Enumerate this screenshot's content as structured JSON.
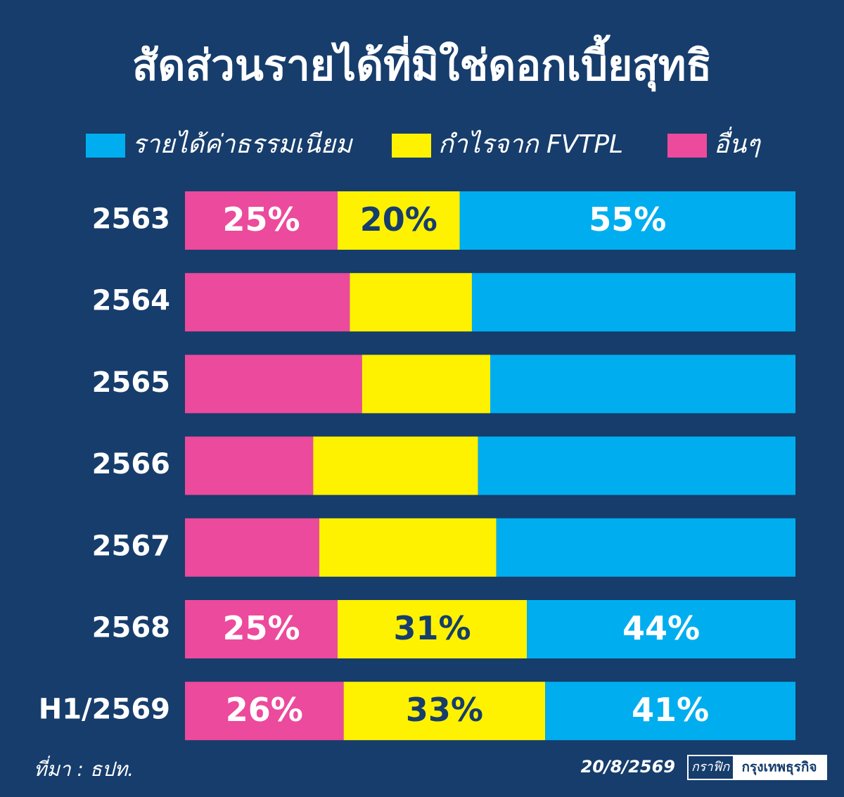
{
  "chart_data": {
    "type": "stacked-bar-horizontal",
    "title": "สัดส่วนรายได้ที่มิใช่ดอกเบี้ยสุทธิ",
    "categories": [
      "2563",
      "2564",
      "2565",
      "2566",
      "2567",
      "2568",
      "H1/2569"
    ],
    "series": [
      {
        "name": "รายได้ค่าธรรมเนียม",
        "color": "#00aeef",
        "values": [
          55,
          53,
          50,
          52,
          49,
          44,
          41
        ],
        "value_labels": [
          "55%",
          null,
          null,
          null,
          null,
          "44%",
          "41%"
        ]
      },
      {
        "name": "กำไรจาก FVTPL",
        "color": "#fff200",
        "values": [
          20,
          20,
          21,
          27,
          29,
          31,
          33
        ],
        "value_labels": [
          "20%",
          null,
          null,
          null,
          null,
          "31%",
          "33%"
        ]
      },
      {
        "name": "อื่นๆ",
        "color": "#ec4a9c",
        "values": [
          25,
          27,
          29,
          21,
          22,
          25,
          26
        ],
        "value_labels": [
          "25%",
          null,
          null,
          null,
          null,
          "25%",
          "26%"
        ]
      }
    ],
    "xlim": [
      0,
      100
    ],
    "source": "ที่มา : ธปท.",
    "date": "20/8/2569",
    "credit": {
      "prefix": "กราฟิก",
      "name": "กรุงเทพธุรกิจ"
    }
  }
}
